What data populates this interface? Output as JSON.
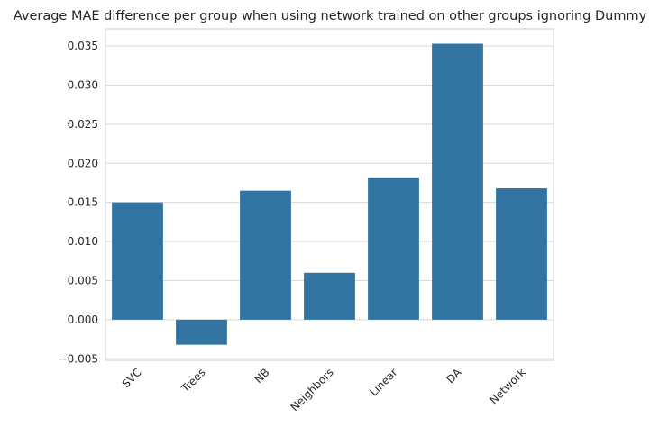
{
  "chart_data": {
    "type": "bar",
    "title": "Average MAE difference per group when using network trained on other groups ignoring Dummy",
    "xlabel": "",
    "ylabel": "",
    "categories": [
      "SVC",
      "Trees",
      "NB",
      "Neighbors",
      "Linear",
      "DA",
      "Network"
    ],
    "values": [
      0.015,
      -0.0032,
      0.0165,
      0.006,
      0.0181,
      0.0353,
      0.0168
    ],
    "ylim": [
      -0.0052,
      0.0372
    ],
    "yticks": [
      -0.005,
      0.0,
      0.005,
      0.01,
      0.015,
      0.02,
      0.025,
      0.03,
      0.035
    ],
    "ytick_labels": [
      "−0.005",
      "0.000",
      "0.005",
      "0.010",
      "0.015",
      "0.020",
      "0.025",
      "0.030",
      "0.035"
    ],
    "grid": true,
    "bar_color": "#3274a1",
    "grid_color": "#d9d9d9",
    "x_tick_rotation_deg": 45
  }
}
